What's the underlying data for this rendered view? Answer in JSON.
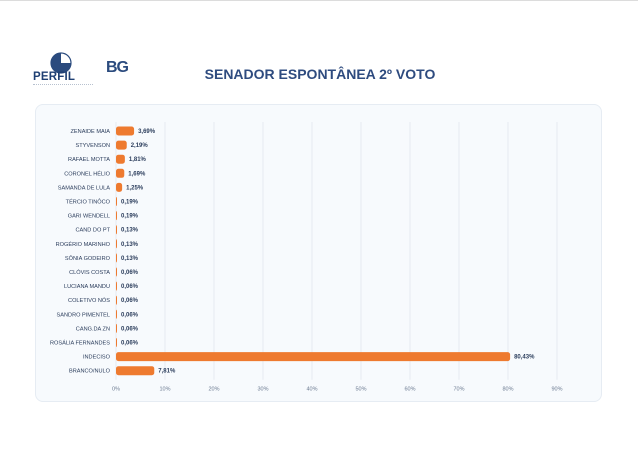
{
  "header": {
    "title": "SENADOR ESPONTÂNEA 2º VOTO",
    "logo_perfil": "PERFIL",
    "logo_bg": "BG"
  },
  "colors": {
    "bar": "#ee7a2f",
    "title": "#2e4b7f",
    "grid": "#e2e7ee",
    "label": "#2b3d5c"
  },
  "chart_data": {
    "type": "bar",
    "orientation": "horizontal",
    "title": "SENADOR ESPONTÂNEA 2º VOTO",
    "xlim": [
      0,
      90
    ],
    "xticks": [
      0,
      10,
      20,
      30,
      40,
      50,
      60,
      70,
      80,
      90
    ],
    "xtick_labels": [
      "0%",
      "10%",
      "20%",
      "30%",
      "40%",
      "50%",
      "60%",
      "70%",
      "80%",
      "90%"
    ],
    "grid": true,
    "categories": [
      "ZENAIDE MAIA",
      "STYVENSON",
      "RAFAEL MOTTA",
      "CORONEL HÉLIO",
      "SAMANDA DE LULA",
      "TÉRCIO TINÔCO",
      "GARI WENDELL",
      "CAND DO PT",
      "ROGÉRIO MARINHO",
      "SÔNIA GODEIRO",
      "CLÓVIS COSTA",
      "LUCIANA MANDU",
      "COLETIVO NÓS",
      "SANDRO PIMENTEL",
      "CANG.DA ZN",
      "ROSÁLIA FERNANDES",
      "INDECISO",
      "BRANCO/NULO"
    ],
    "values": [
      3.69,
      2.19,
      1.81,
      1.69,
      1.25,
      0.19,
      0.19,
      0.13,
      0.13,
      0.13,
      0.06,
      0.06,
      0.06,
      0.06,
      0.06,
      0.06,
      80.43,
      7.81
    ],
    "value_labels": [
      "3,69%",
      "2,19%",
      "1,81%",
      "1,69%",
      "1,25%",
      "0,19%",
      "0,19%",
      "0,13%",
      "0,13%",
      "0,13%",
      "0,06%",
      "0,06%",
      "0,06%",
      "0,06%",
      "0,06%",
      "0,06%",
      "80,43%",
      "7,81%"
    ]
  }
}
